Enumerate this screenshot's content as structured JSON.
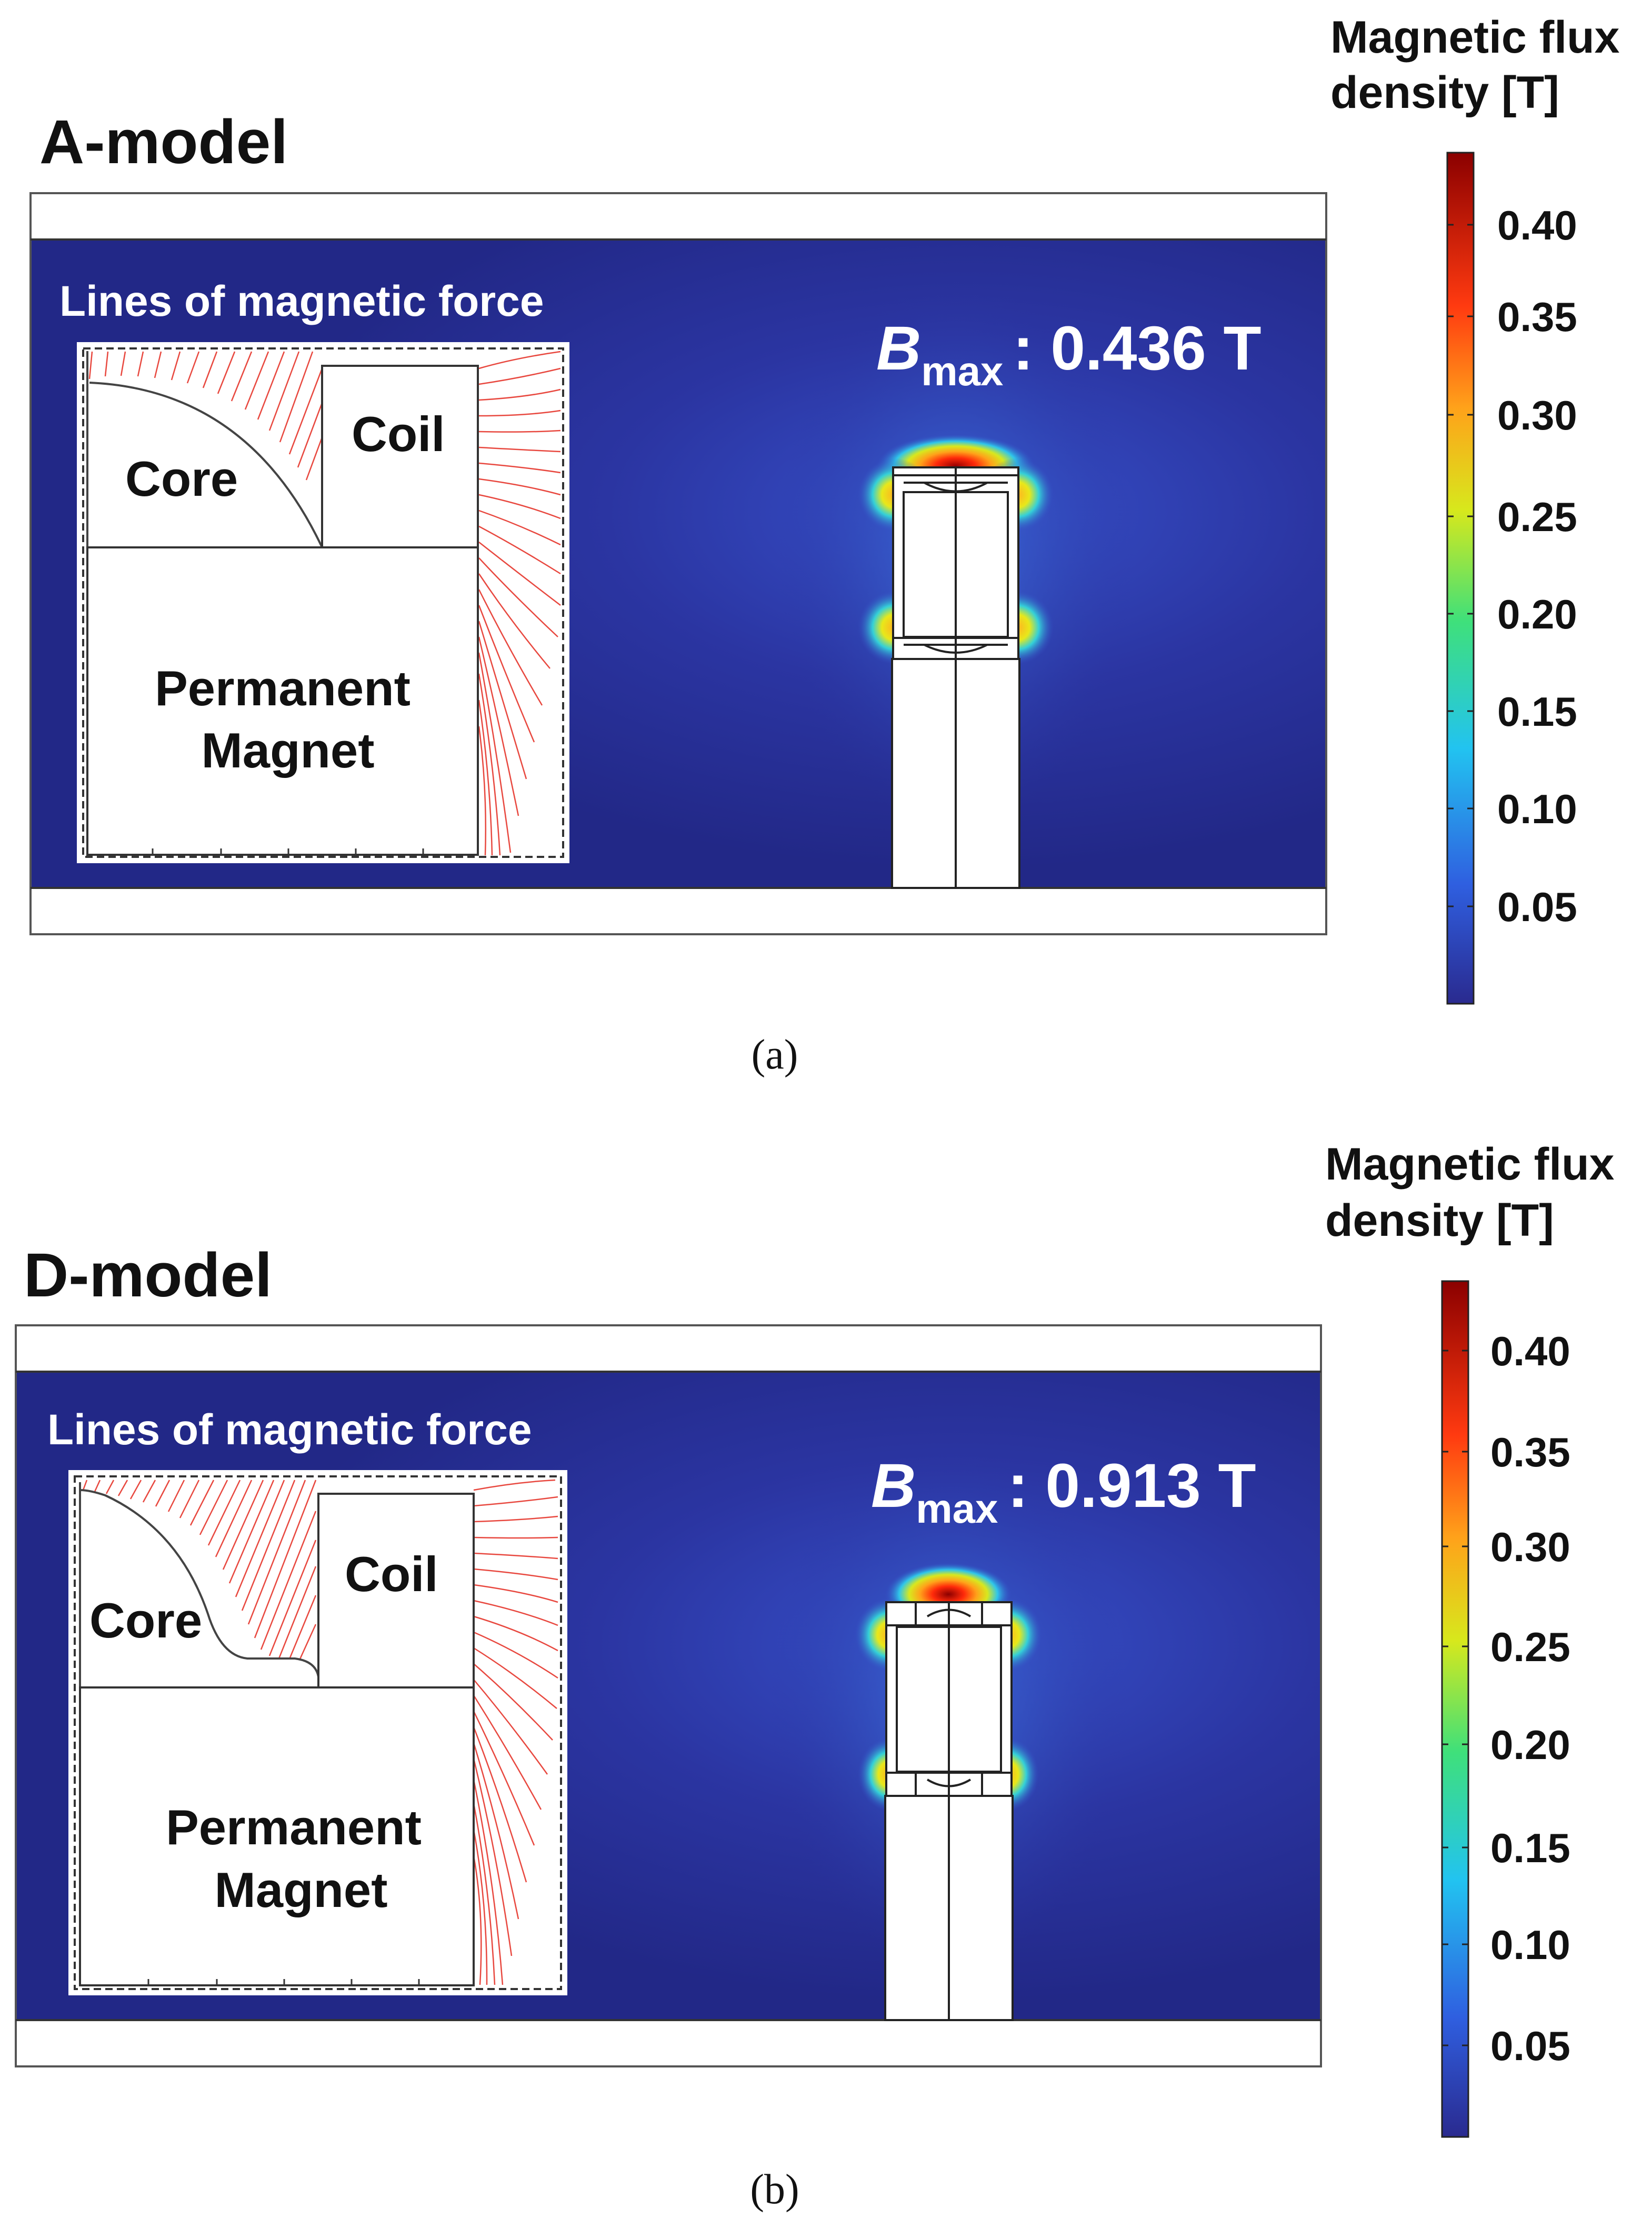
{
  "figure": {
    "panels": [
      {
        "model_title": "A-model",
        "inset_label": "Lines of magnetic force",
        "labels": {
          "coil": "Coil",
          "core": "Core",
          "magnet_line1": "Permanent",
          "magnet_line2": "Magnet"
        },
        "bmax": {
          "symbol": "B",
          "subscript": "max",
          "value_text": ": 0.436 T"
        },
        "colorbar": {
          "title_line1": "Magnetic flux",
          "title_line2": "density [T]",
          "ticks": [
            "0.40",
            "0.35",
            "0.30",
            "0.25",
            "0.20",
            "0.15",
            "0.10",
            "0.05"
          ]
        },
        "caption": "(a)",
        "core_shape": "concave-arc"
      },
      {
        "model_title": "D-model",
        "inset_label": "Lines of magnetic force",
        "labels": {
          "coil": "Coil",
          "core": "Core",
          "magnet_line1": "Permanent",
          "magnet_line2": "Magnet"
        },
        "bmax": {
          "symbol": "B",
          "subscript": "max",
          "value_text": ": 0.913 T"
        },
        "colorbar": {
          "title_line1": "Magnetic flux",
          "title_line2": "density [T]",
          "ticks": [
            "0.40",
            "0.35",
            "0.30",
            "0.25",
            "0.20",
            "0.15",
            "0.10",
            "0.05"
          ]
        },
        "caption": "(b)",
        "core_shape": "tapered-tip"
      }
    ],
    "colors": {
      "background_field": "#252a8c",
      "field_mid": "#3550c8",
      "hotspot_red": "#c81400",
      "field_lines": "#e8483f",
      "colorbar_stops": [
        "#2a2a8f",
        "#2f5fe0",
        "#22c3f0",
        "#3fe07a",
        "#d7e81c",
        "#ffa21a",
        "#ff3a10",
        "#8b0000"
      ]
    }
  }
}
